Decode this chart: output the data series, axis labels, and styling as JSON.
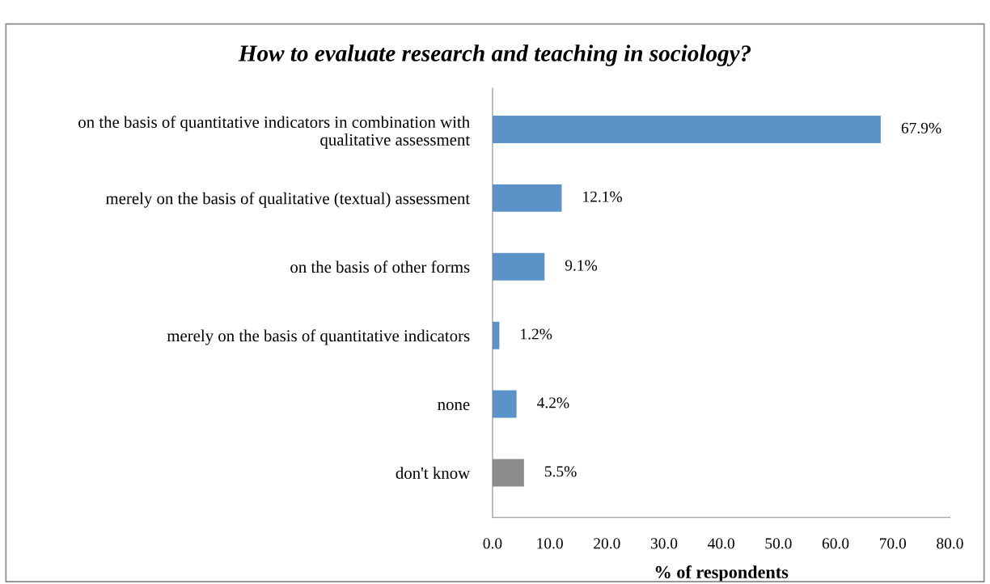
{
  "chart_data": {
    "type": "bar",
    "orientation": "horizontal",
    "title": "How to evaluate research and teaching in sociology?",
    "xlabel": "% of respondents",
    "categories": [
      "on the basis of quantitative indicators in combination with\nqualitative assessment",
      "merely on the basis of qualitative (textual) assessment",
      "on the basis of other forms",
      "merely on the basis of quantitative indicators",
      "none",
      "don't know"
    ],
    "values": [
      67.9,
      12.1,
      9.1,
      1.2,
      4.2,
      5.5
    ],
    "colors": [
      "#5b93c9",
      "#5b93c9",
      "#5b93c9",
      "#5b93c9",
      "#5b93c9",
      "#8c8c8c"
    ],
    "value_labels": [
      "67.9%",
      "12.1%",
      "9.1%",
      "1.2%",
      "4.2%",
      "5.5%"
    ],
    "xlim": [
      0,
      80
    ],
    "xticks": [
      {
        "value": 0,
        "label": "0.0"
      },
      {
        "value": 10,
        "label": "10.0"
      },
      {
        "value": 20,
        "label": "20.0"
      },
      {
        "value": 30,
        "label": "30.0"
      },
      {
        "value": 40,
        "label": "40.0"
      },
      {
        "value": 50,
        "label": "50.0"
      },
      {
        "value": 60,
        "label": "60.0"
      },
      {
        "value": 70,
        "label": "70.0"
      },
      {
        "value": 80,
        "label": "80.0"
      }
    ],
    "grid": false,
    "legend": false
  }
}
